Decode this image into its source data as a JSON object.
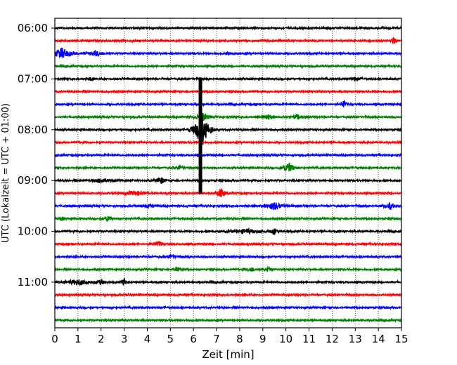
{
  "chart_data": {
    "type": "line",
    "title": "",
    "xlabel": "Zeit  [min]",
    "ylabel": "UTC (Lokalzeit = UTC + 01:00)",
    "xlim": [
      0,
      15
    ],
    "x_ticks": [
      0,
      1,
      2,
      3,
      4,
      5,
      6,
      7,
      8,
      9,
      10,
      11,
      12,
      13,
      14,
      15
    ],
    "x_tick_labels": [
      "0",
      "1",
      "2",
      "3",
      "4",
      "5",
      "6",
      "7",
      "8",
      "9",
      "10",
      "11",
      "12",
      "13",
      "14",
      "15"
    ],
    "y_tick_labels": [
      "06:00",
      "07:00",
      "08:00",
      "09:00",
      "10:00",
      "11:00"
    ],
    "line_interval_minutes": 15,
    "start_time": "06:00",
    "grid": {
      "vertical": true,
      "style": "dotted"
    },
    "series_colors": [
      "#000000",
      "#ff0000",
      "#0000ff",
      "#008000"
    ],
    "series": [
      {
        "start": "06:00",
        "color": "#000000",
        "events": []
      },
      {
        "start": "06:15",
        "color": "#ff0000",
        "events": [
          {
            "t": 14.65,
            "amp": 1.2,
            "width": 0.15
          }
        ]
      },
      {
        "start": "06:30",
        "color": "#0000ff",
        "events": [
          {
            "t": 0.3,
            "amp": 1.3,
            "width": 0.8
          },
          {
            "t": 1.8,
            "amp": 0.6,
            "width": 0.6
          },
          {
            "t": 7.5,
            "amp": 0.4,
            "width": 0.3
          }
        ]
      },
      {
        "start": "06:45",
        "color": "#008000",
        "events": []
      },
      {
        "start": "07:00",
        "color": "#000000",
        "events": [
          {
            "t": 1.6,
            "amp": 0.6,
            "width": 0.2
          },
          {
            "t": 13.0,
            "amp": 0.4,
            "width": 0.4
          }
        ]
      },
      {
        "start": "07:15",
        "color": "#ff0000",
        "events": []
      },
      {
        "start": "07:30",
        "color": "#0000ff",
        "events": [
          {
            "t": 6.3,
            "amp": 0.5,
            "width": 0.2
          },
          {
            "t": 12.5,
            "amp": 1.0,
            "width": 0.2
          }
        ]
      },
      {
        "start": "07:45",
        "color": "#008000",
        "events": [
          {
            "t": 6.4,
            "amp": 1.0,
            "width": 0.6
          },
          {
            "t": 9.2,
            "amp": 0.6,
            "width": 0.6
          },
          {
            "t": 10.5,
            "amp": 0.5,
            "width": 0.5
          }
        ]
      },
      {
        "start": "08:00",
        "color": "#000000",
        "events": [
          {
            "t": 6.35,
            "amp": 4.5,
            "width": 0.6
          }
        ]
      },
      {
        "start": "08:15",
        "color": "#ff0000",
        "events": []
      },
      {
        "start": "08:30",
        "color": "#0000ff",
        "events": []
      },
      {
        "start": "08:45",
        "color": "#008000",
        "events": [
          {
            "t": 5.4,
            "amp": 0.6,
            "width": 0.4
          },
          {
            "t": 10.1,
            "amp": 1.3,
            "width": 0.5
          }
        ]
      },
      {
        "start": "09:00",
        "color": "#000000",
        "events": [
          {
            "t": 4.6,
            "amp": 0.8,
            "width": 0.4
          },
          {
            "t": 2.0,
            "amp": 0.5,
            "width": 1.0
          }
        ]
      },
      {
        "start": "09:15",
        "color": "#ff0000",
        "events": [
          {
            "t": 7.2,
            "amp": 1.2,
            "width": 0.4
          },
          {
            "t": 3.5,
            "amp": 0.5,
            "width": 1.0
          }
        ]
      },
      {
        "start": "09:30",
        "color": "#0000ff",
        "events": [
          {
            "t": 9.5,
            "amp": 0.9,
            "width": 0.8
          },
          {
            "t": 14.5,
            "amp": 0.8,
            "width": 0.4
          },
          {
            "t": 4.0,
            "amp": 0.4,
            "width": 0.6
          }
        ]
      },
      {
        "start": "09:45",
        "color": "#008000",
        "events": [
          {
            "t": 2.3,
            "amp": 0.8,
            "width": 0.3
          },
          {
            "t": 0.3,
            "amp": 0.6,
            "width": 0.2
          }
        ]
      },
      {
        "start": "10:00",
        "color": "#000000",
        "events": [
          {
            "t": 8.3,
            "amp": 0.5,
            "width": 1.2
          },
          {
            "t": 9.5,
            "amp": 0.8,
            "width": 0.3
          }
        ]
      },
      {
        "start": "10:15",
        "color": "#ff0000",
        "events": [
          {
            "t": 4.5,
            "amp": 0.5,
            "width": 0.5
          }
        ]
      },
      {
        "start": "10:30",
        "color": "#0000ff",
        "events": [
          {
            "t": 5.0,
            "amp": 0.5,
            "width": 0.5
          }
        ]
      },
      {
        "start": "10:45",
        "color": "#008000",
        "events": [
          {
            "t": 5.3,
            "amp": 0.6,
            "width": 0.3
          },
          {
            "t": 8.5,
            "amp": 0.5,
            "width": 0.4
          },
          {
            "t": 9.2,
            "amp": 0.5,
            "width": 0.3
          }
        ]
      },
      {
        "start": "11:00",
        "color": "#000000",
        "events": [
          {
            "t": 1.0,
            "amp": 0.6,
            "width": 1.2
          },
          {
            "t": 3.0,
            "amp": 1.1,
            "width": 0.2
          },
          {
            "t": 2.0,
            "amp": 0.5,
            "width": 0.4
          }
        ]
      },
      {
        "start": "11:15",
        "color": "#ff0000",
        "events": []
      },
      {
        "start": "11:30",
        "color": "#0000ff",
        "events": []
      },
      {
        "start": "11:45",
        "color": "#008000",
        "events": []
      }
    ],
    "vertical_spike": {
      "t": 6.3,
      "from_series": "07:00",
      "to_series": "09:15"
    }
  }
}
